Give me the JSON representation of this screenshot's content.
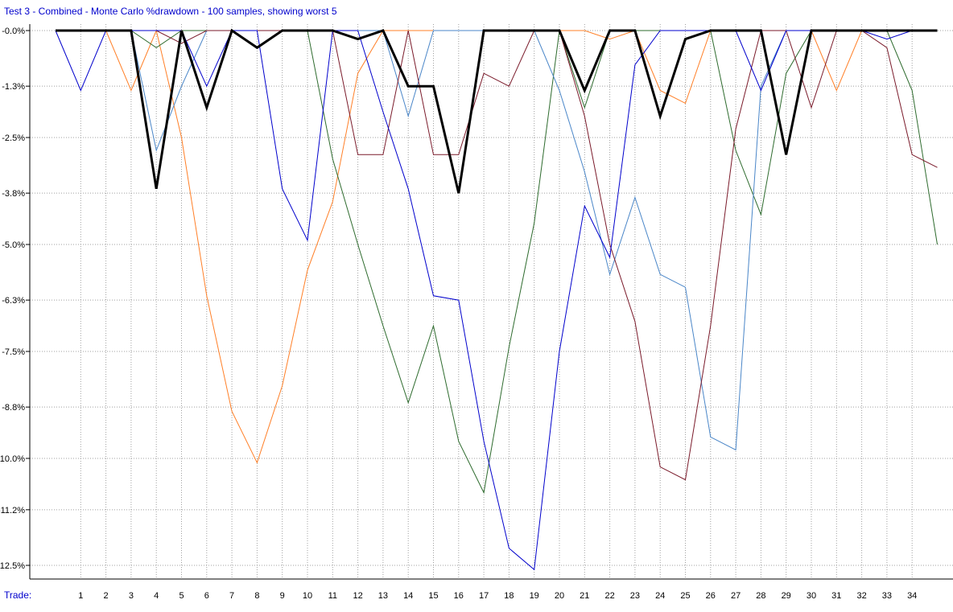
{
  "chart_data": {
    "type": "line",
    "title": "Test 3 - Combined - Monte Carlo %drawdown - 100 samples, showing worst 5",
    "xlabel": "Trade:",
    "ylabel": "",
    "ylim": [
      -13.0,
      0.4
    ],
    "xlim": [
      -1,
      35.5
    ],
    "yticks": [
      0.0,
      -1.3,
      -2.5,
      -3.8,
      -5.0,
      -6.3,
      -7.5,
      -8.8,
      -10.0,
      -11.2,
      -12.5
    ],
    "ytick_labels": [
      "-0.0%",
      "-1.3%",
      "-2.5%",
      "-3.8%",
      "-5.0%",
      "-6.3%",
      "-7.5%",
      "-8.8%",
      "-10.0%",
      "-11.2%",
      "-12.5%"
    ],
    "xticks": [
      1,
      2,
      3,
      4,
      5,
      6,
      7,
      8,
      9,
      10,
      11,
      12,
      13,
      14,
      15,
      16,
      17,
      18,
      19,
      20,
      21,
      22,
      23,
      24,
      25,
      26,
      27,
      28,
      29,
      30,
      31,
      32,
      33,
      34
    ],
    "grid": true,
    "x": [
      0,
      1,
      2,
      3,
      4,
      5,
      6,
      7,
      8,
      9,
      10,
      11,
      12,
      13,
      14,
      15,
      16,
      17,
      18,
      19,
      20,
      21,
      22,
      23,
      24,
      25,
      26,
      27,
      28,
      29,
      30,
      31,
      32,
      33,
      34,
      35
    ],
    "series": [
      {
        "color": "#ff7f27",
        "width": 1,
        "values": [
          0,
          0,
          0,
          -1.4,
          0,
          -2.5,
          -6.2,
          -8.9,
          -10.1,
          -8.3,
          -5.6,
          -4.0,
          -1.0,
          0,
          0,
          0,
          0,
          0,
          0,
          0,
          0,
          0,
          -0.2,
          0,
          -1.4,
          -1.7,
          0,
          0,
          0,
          0,
          0,
          -1.4,
          0,
          0,
          0,
          0
        ]
      },
      {
        "color": "#2e6b2e",
        "width": 1,
        "values": [
          0,
          0,
          0,
          0,
          -0.4,
          0,
          0,
          0,
          0,
          0,
          0,
          -3.0,
          -5.0,
          -6.9,
          -8.7,
          -6.9,
          -9.6,
          -10.8,
          -7.4,
          -4.5,
          0,
          -1.8,
          0,
          0,
          0,
          0,
          0,
          -2.8,
          -4.3,
          -1.0,
          0,
          0,
          0,
          0,
          -1.4,
          -5.0
        ]
      },
      {
        "color": "#4a86c8",
        "width": 1,
        "values": [
          0,
          0,
          0,
          0,
          -2.8,
          -1.3,
          0,
          0,
          0,
          0,
          0,
          0,
          0,
          0,
          -2.0,
          0,
          0,
          0,
          0,
          0,
          -1.4,
          -3.3,
          -5.7,
          -3.9,
          -5.7,
          -6.0,
          -9.5,
          -9.8,
          -1.3,
          0,
          0,
          0,
          0,
          0,
          0,
          0
        ]
      },
      {
        "color": "#7a1a2a",
        "width": 1,
        "values": [
          0,
          0,
          0,
          0,
          0,
          -0.3,
          0,
          0,
          0,
          0,
          0,
          0,
          -2.9,
          -2.9,
          0,
          -2.9,
          -2.9,
          -1.0,
          -1.3,
          0,
          0,
          -2.0,
          -5.0,
          -6.8,
          -10.2,
          -10.5,
          -6.9,
          -2.3,
          0,
          0,
          -1.8,
          0,
          0,
          -0.4,
          -2.9,
          -3.2
        ]
      },
      {
        "color": "#0000cc",
        "width": 1,
        "values": [
          0,
          -1.4,
          0,
          0,
          0,
          0,
          -1.3,
          0,
          0,
          -3.7,
          -4.9,
          0,
          0,
          -1.9,
          -3.7,
          -6.2,
          -6.3,
          -9.6,
          -12.1,
          -12.6,
          -7.5,
          -4.1,
          -5.3,
          -0.8,
          0,
          0,
          0,
          0,
          -1.4,
          0,
          0,
          0,
          0,
          -0.2,
          0,
          0
        ]
      },
      {
        "color": "#000000",
        "width": 3,
        "values": [
          0,
          0,
          0,
          0,
          -3.7,
          0,
          -1.8,
          0,
          -0.4,
          0,
          0,
          0,
          -0.2,
          0,
          -1.3,
          -1.3,
          -3.8,
          0,
          0,
          0,
          0,
          -1.4,
          0,
          0,
          -2.0,
          -0.2,
          0,
          0,
          0,
          -2.9,
          0,
          0,
          0,
          0,
          0,
          0
        ]
      }
    ]
  }
}
